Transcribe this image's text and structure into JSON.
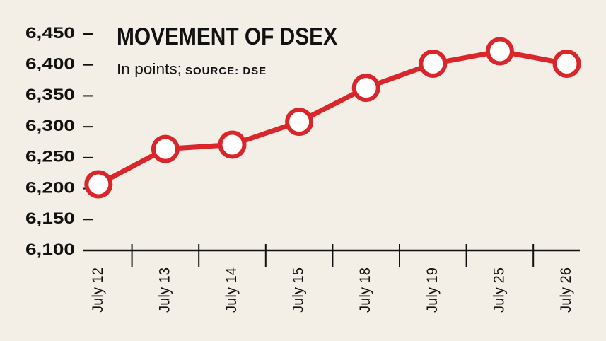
{
  "chart_data": {
    "type": "line",
    "title": "MOVEMENT OF DSEX",
    "subtitle": "In points;",
    "source": "SOURCE: DSE",
    "categories": [
      "July 12",
      "July 13",
      "July 14",
      "July 15",
      "July 18",
      "July 19",
      "July 25",
      "July 26"
    ],
    "values": [
      6207,
      6264,
      6271,
      6308,
      6363,
      6402,
      6422,
      6402
    ],
    "color": "#d8262b",
    "ylim": [
      6100,
      6450
    ],
    "yticks": [
      {
        "value": 6100,
        "label": "6,100"
      },
      {
        "value": 6150,
        "label": "6,150"
      },
      {
        "value": 6200,
        "label": "6,200"
      },
      {
        "value": 6250,
        "label": "6,250"
      },
      {
        "value": 6300,
        "label": "6,300"
      },
      {
        "value": 6350,
        "label": "6,350"
      },
      {
        "value": 6400,
        "label": "6,400"
      },
      {
        "value": 6450,
        "label": "6,450"
      }
    ]
  }
}
